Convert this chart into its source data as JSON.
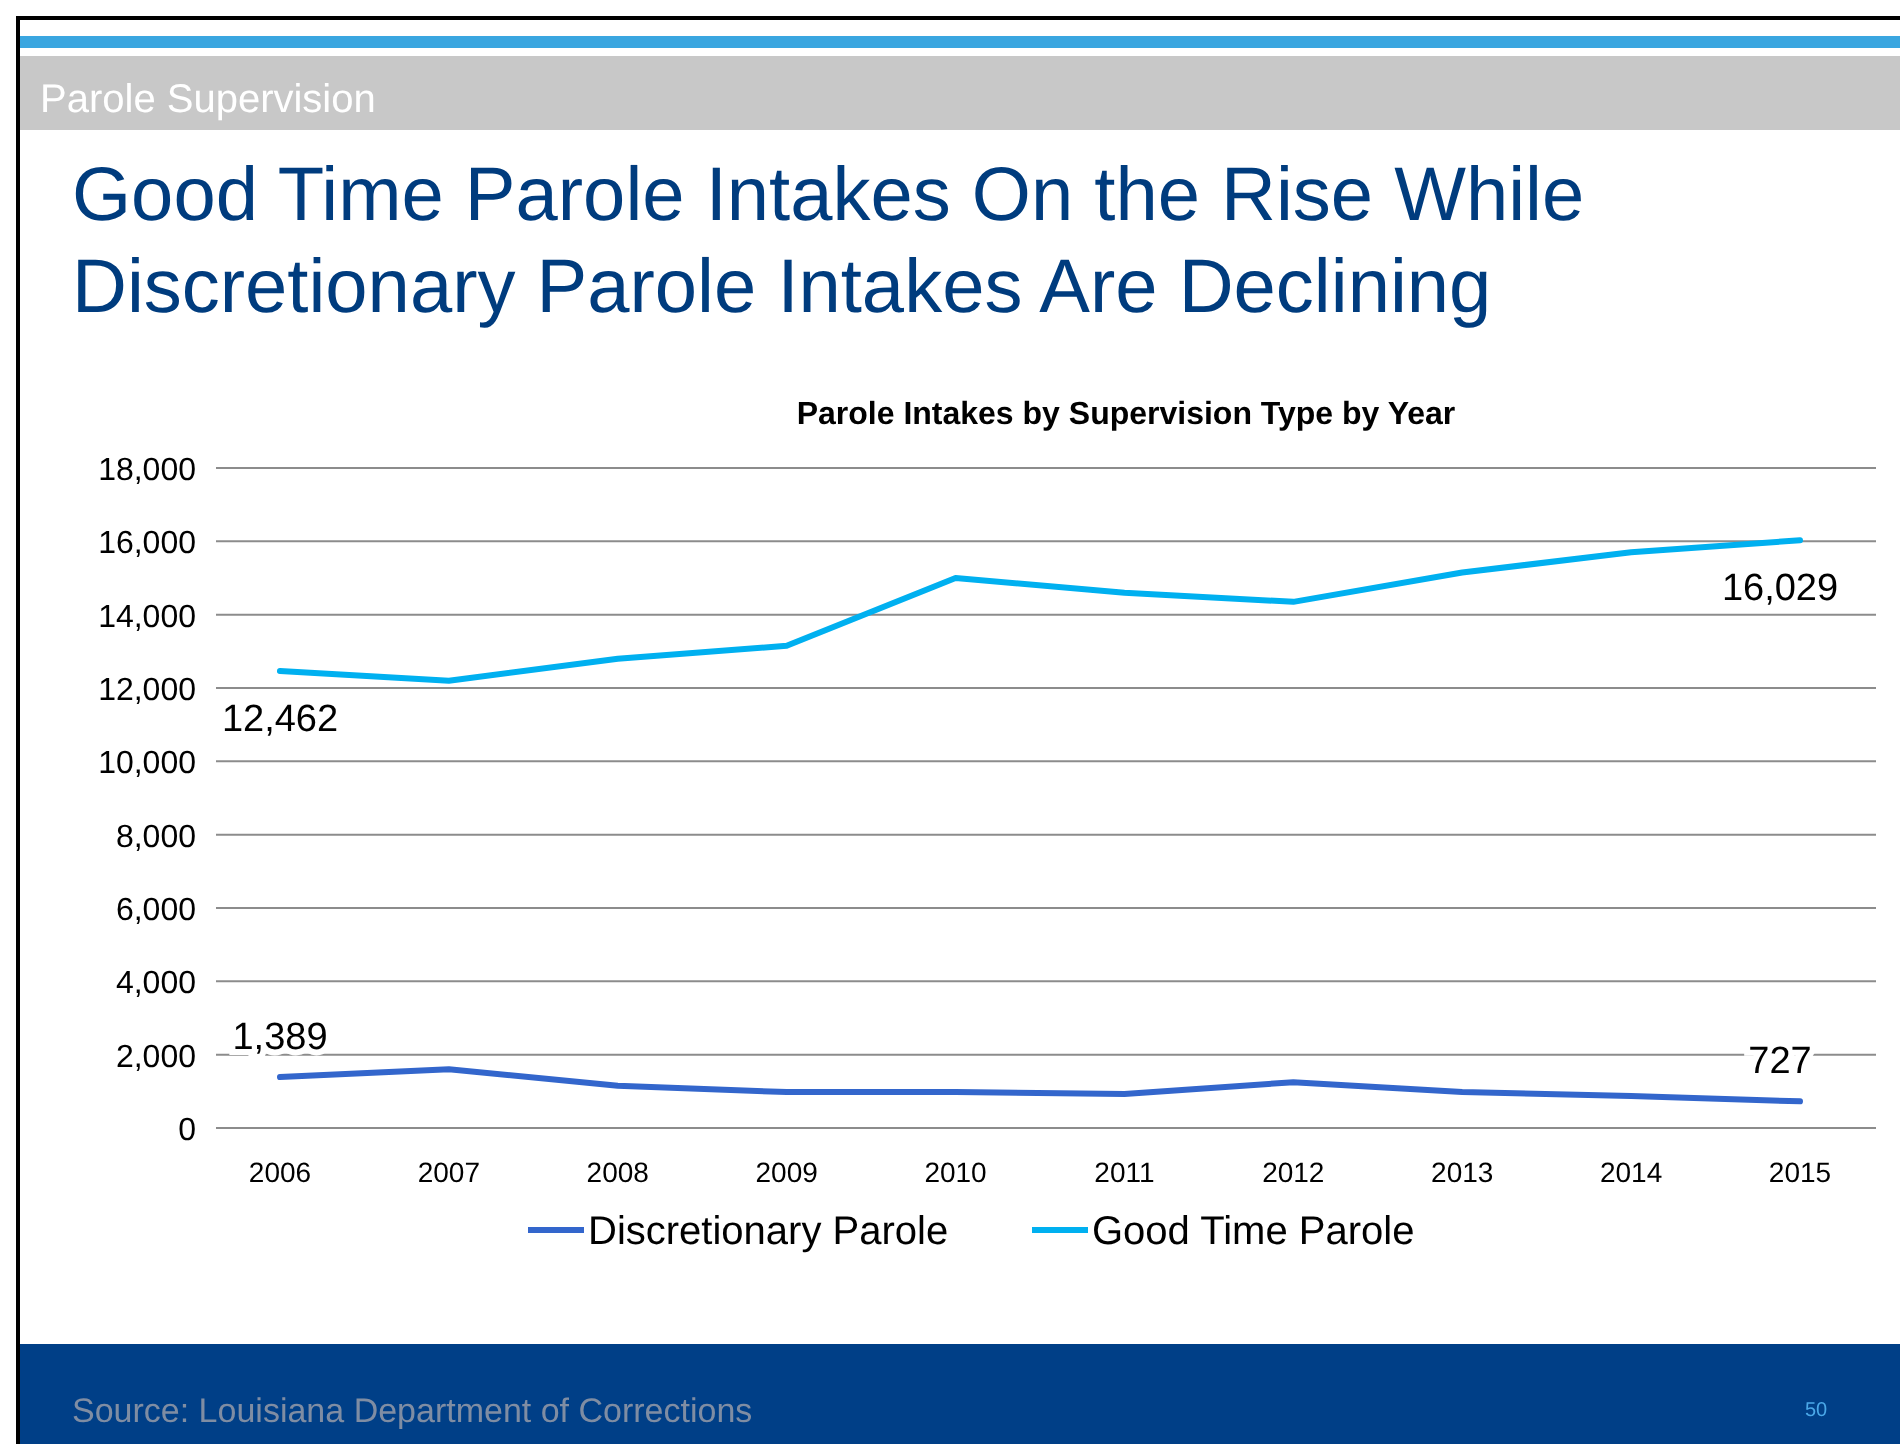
{
  "chart_data": {
    "type": "line",
    "title": "Good Time Parole Intakes On the Rise While Discretionary Parole Intakes Are Declining",
    "subtitle": "Parole Intakes by Supervision Type by Year",
    "categories": [
      "2006",
      "2007",
      "2008",
      "2009",
      "2010",
      "2011",
      "2012",
      "2013",
      "2014",
      "2015"
    ],
    "series": [
      {
        "name": "Discretionary Parole",
        "color": "#3366cc",
        "values": [
          1389,
          1600,
          1150,
          980,
          980,
          930,
          1250,
          980,
          870,
          727
        ],
        "value_labels": [
          "1,389",
          null,
          null,
          null,
          null,
          null,
          null,
          null,
          null,
          "727"
        ]
      },
      {
        "name": "Good Time Parole",
        "color": "#00b0f0",
        "values": [
          12462,
          12200,
          12800,
          13150,
          15000,
          14600,
          14350,
          15150,
          15700,
          16029
        ],
        "value_labels": [
          "12,462",
          null,
          null,
          null,
          null,
          null,
          null,
          null,
          null,
          "16,029"
        ]
      }
    ],
    "ylim": [
      0,
      18000
    ],
    "yticks": [
      {
        "value": 0,
        "label": "0"
      },
      {
        "value": 2000,
        "label": "2,000"
      },
      {
        "value": 4000,
        "label": "4,000"
      },
      {
        "value": 6000,
        "label": "6,000"
      },
      {
        "value": 8000,
        "label": "8,000"
      },
      {
        "value": 10000,
        "label": "10,000"
      },
      {
        "value": 12000,
        "label": "12,000"
      },
      {
        "value": 14000,
        "label": "14,000"
      },
      {
        "value": 16000,
        "label": "16,000"
      },
      {
        "value": 18000,
        "label": "18,000"
      }
    ],
    "grid": "y",
    "legend": "bottom",
    "marker": "none",
    "line_style": "solid",
    "annotations": [
      "Parole Supervision",
      "Source: Louisiana Department of Corrections",
      "50"
    ]
  }
}
